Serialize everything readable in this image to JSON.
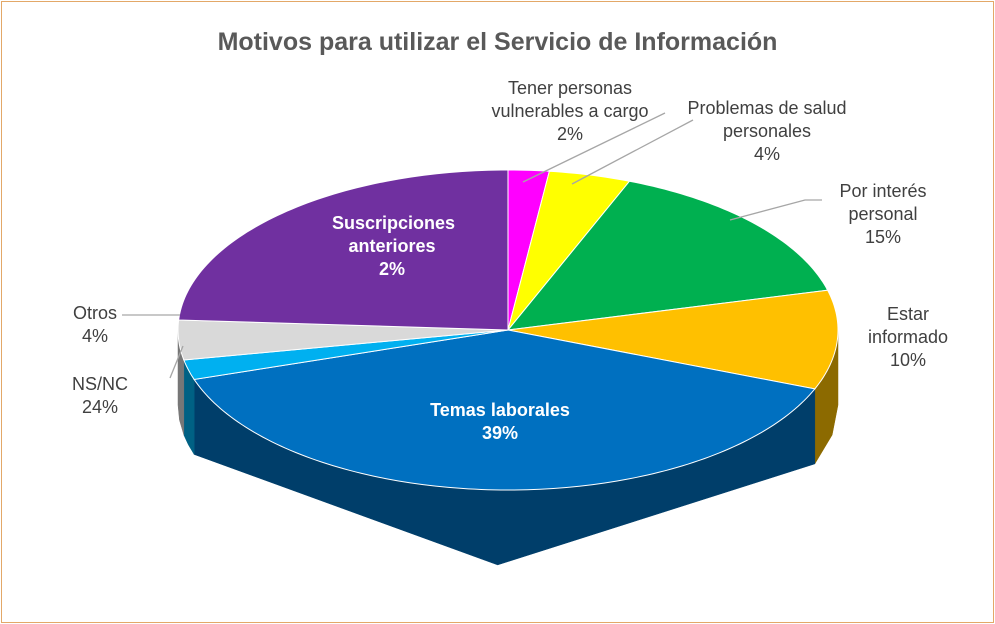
{
  "chart_data": {
    "type": "pie3d",
    "title": "Motivos para utilizar el Servicio de Información",
    "categories": [
      "Tener personas vulnerables a cargo",
      "Problemas de salud personales",
      "Por interés personal",
      "Estar informado",
      "Temas laborales",
      "Suscripciones anteriores",
      "Otros",
      "NS/NC"
    ],
    "values": [
      2,
      4,
      15,
      10,
      39,
      2,
      4,
      24
    ],
    "value_labels": [
      "2%",
      "4%",
      "15%",
      "10%",
      "39%",
      "2%",
      "4%",
      "24%"
    ],
    "colors": [
      "#ff00ff",
      "#ffff00",
      "#00b050",
      "#ffc000",
      "#0070c0",
      "#00b0f0",
      "#d9d9d9",
      "#7030a0"
    ]
  }
}
